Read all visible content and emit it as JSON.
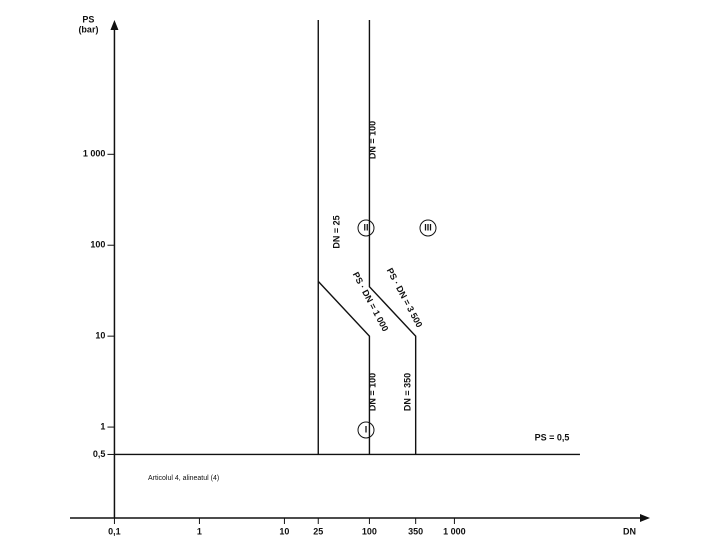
{
  "chart_data": {
    "type": "line",
    "x_label": "DN",
    "y_label": [
      "PS",
      "(bar)"
    ],
    "xscale": "log",
    "yscale": "log",
    "xlim": [
      0.03,
      200000
    ],
    "ylim": [
      0.1,
      30000
    ],
    "xticks": [
      {
        "value": 0.1,
        "label": "0,1"
      },
      1,
      10,
      25,
      100,
      350,
      {
        "value": 1000,
        "label": "1 000"
      }
    ],
    "yticks": [
      {
        "value": 0.5,
        "label": "0,5"
      },
      1,
      10,
      100,
      {
        "value": 1000,
        "label": "1 000"
      }
    ],
    "series": [
      {
        "color": "#111111",
        "x": [
          0.1,
          30000
        ],
        "y": [
          0.5,
          0.5
        ]
      },
      {
        "color": "#111111",
        "x": [
          25,
          25
        ],
        "y": [
          30000,
          0.5
        ]
      },
      {
        "color": "#111111",
        "x": [
          25,
          100,
          100
        ],
        "y": [
          40,
          10,
          0.5
        ]
      },
      {
        "color": "#111111",
        "x": [
          100,
          100,
          350,
          350
        ],
        "y": [
          30000,
          35,
          10,
          0.5
        ]
      }
    ],
    "annotations": [
      "PS = 0,5",
      "DN = 25",
      "DN = 100",
      "PS · DN = 1 000",
      "PS · DN = 3 500",
      "DN = 100",
      "DN = 350",
      "I",
      "II",
      "III",
      "Articolul 4, alineatul (4)"
    ]
  }
}
